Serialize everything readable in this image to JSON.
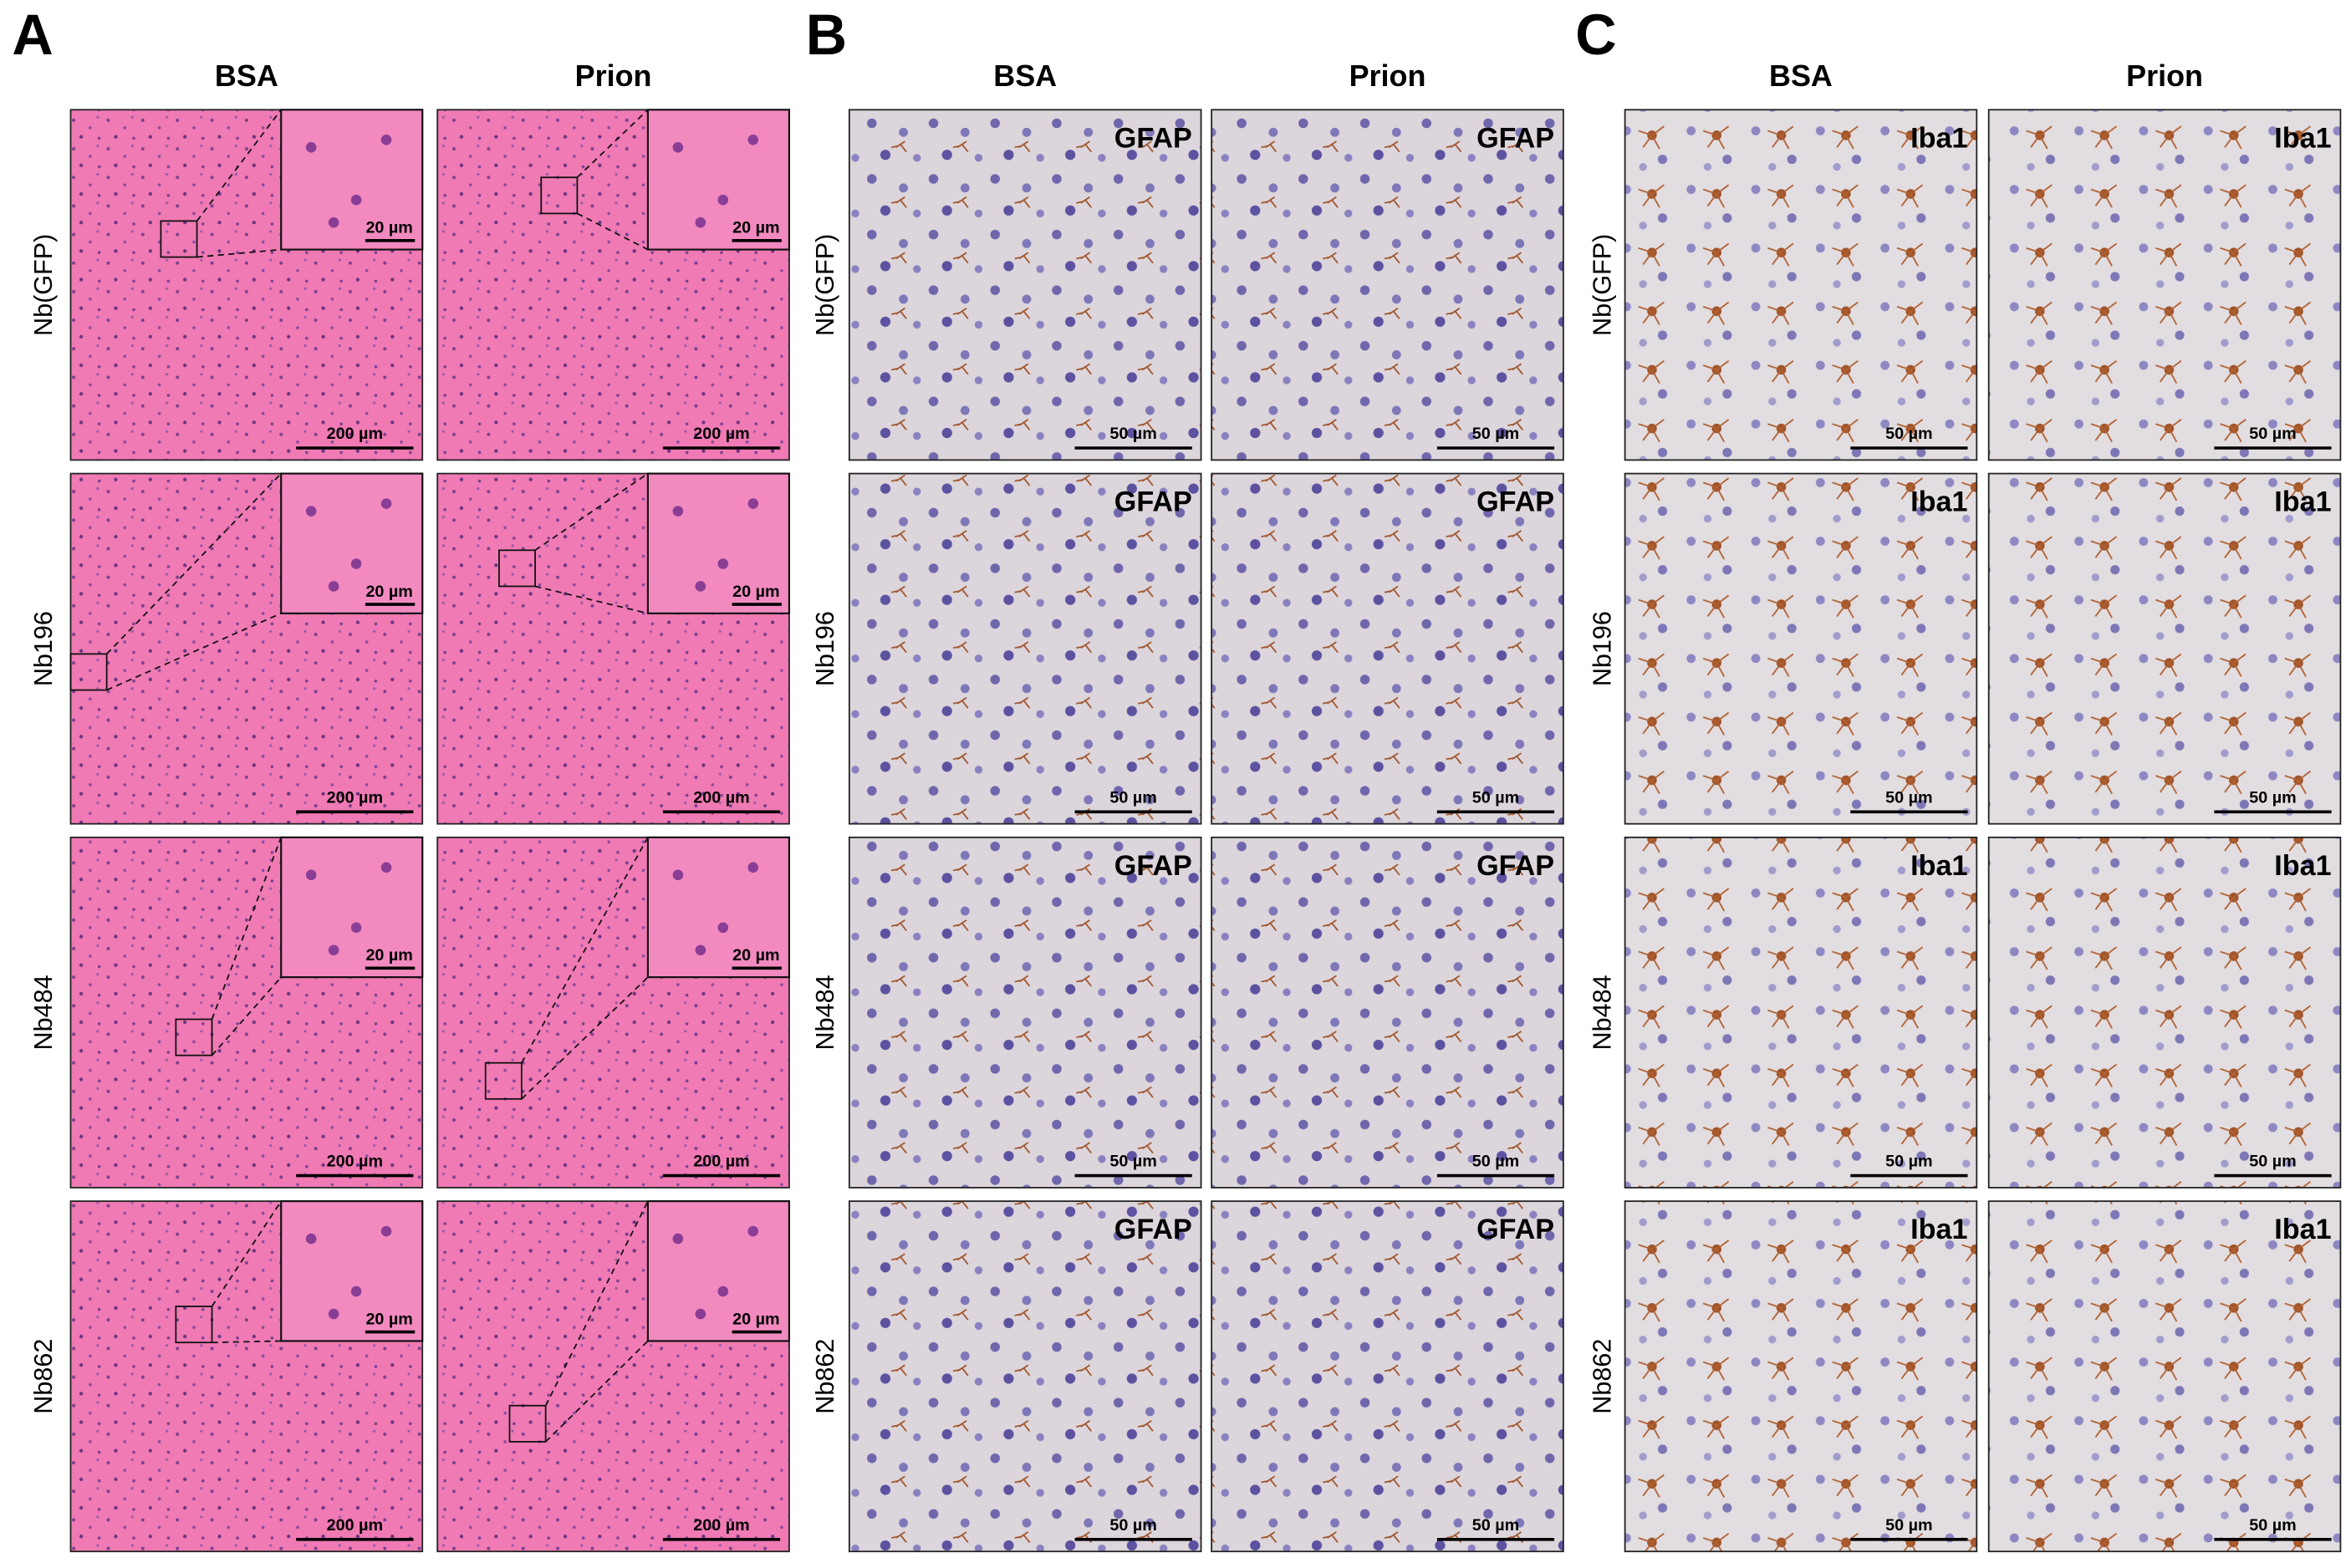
{
  "panels": [
    {
      "letter": "A",
      "columns": [
        "BSA",
        "Prion"
      ],
      "rows": [
        "Nb(GFP)",
        "Nb196",
        "Nb484",
        "Nb862"
      ],
      "scale_bar": "200 µm",
      "inset_scale_bar": "20 µm"
    },
    {
      "letter": "B",
      "columns": [
        "BSA",
        "Prion"
      ],
      "rows": [
        "Nb(GFP)",
        "Nb196",
        "Nb484",
        "Nb862"
      ],
      "stain": "GFAP",
      "scale_bar": "50 µm"
    },
    {
      "letter": "C",
      "columns": [
        "BSA",
        "Prion"
      ],
      "rows": [
        "Nb(GFP)",
        "Nb196",
        "Nb484",
        "Nb862"
      ],
      "stain": "Iba1",
      "scale_bar": "50 µm"
    }
  ]
}
